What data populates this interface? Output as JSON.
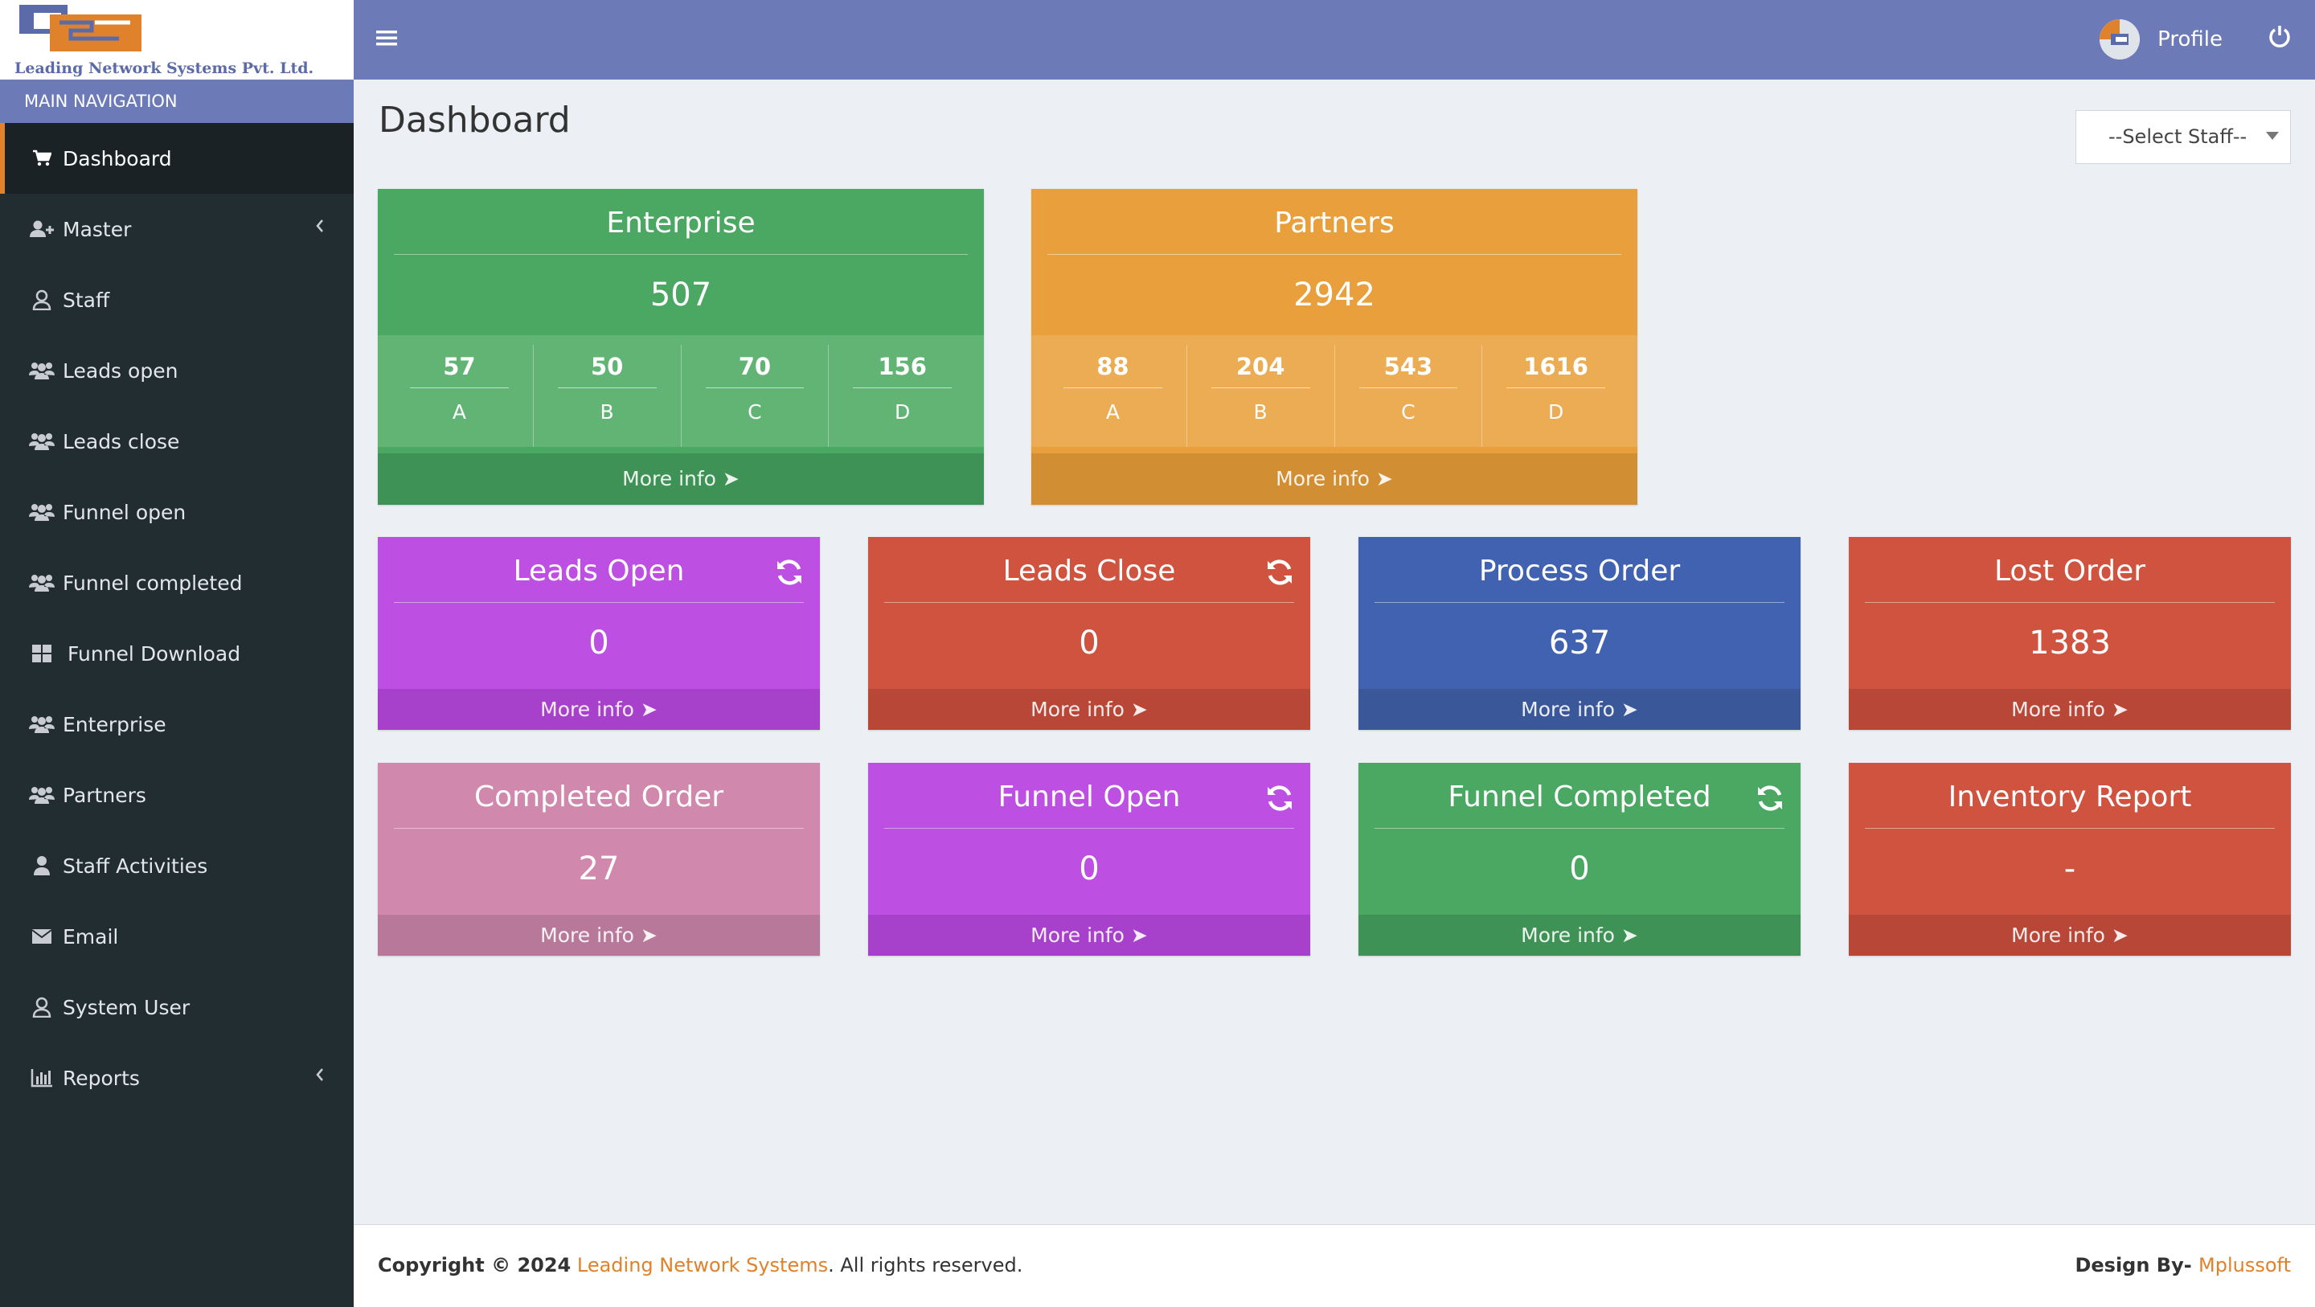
{
  "brand": {
    "logo_text": "Leading Network Systems Pvt. Ltd."
  },
  "sidebar": {
    "header": "MAIN NAVIGATION",
    "items": [
      {
        "label": "Dashboard",
        "icon": "cart-icon"
      },
      {
        "label": "Master",
        "icon": "user-plus-icon"
      },
      {
        "label": "Staff",
        "icon": "user-outline-icon"
      },
      {
        "label": "Leads open",
        "icon": "users-icon"
      },
      {
        "label": "Leads close",
        "icon": "users-icon"
      },
      {
        "label": "Funnel open",
        "icon": "users-icon"
      },
      {
        "label": "Funnel completed",
        "icon": "users-icon"
      },
      {
        "label": "Funnel Download",
        "icon": "grid-icon"
      },
      {
        "label": "Enterprise",
        "icon": "users-icon"
      },
      {
        "label": "Partners",
        "icon": "users-icon"
      },
      {
        "label": "Staff Activities",
        "icon": "user-icon"
      },
      {
        "label": "Email",
        "icon": "envelope-icon"
      },
      {
        "label": "System User",
        "icon": "user-outline-icon"
      },
      {
        "label": "Reports",
        "icon": "bar-chart-icon"
      }
    ]
  },
  "header": {
    "profile_label": "Profile"
  },
  "page": {
    "title": "Dashboard",
    "staff_select": "--Select Staff--"
  },
  "more_info": "More info",
  "enterprise": {
    "title": "Enterprise",
    "value": "507",
    "subs": [
      {
        "v": "57",
        "l": "A"
      },
      {
        "v": "50",
        "l": "B"
      },
      {
        "v": "70",
        "l": "C"
      },
      {
        "v": "156",
        "l": "D"
      }
    ]
  },
  "partners": {
    "title": "Partners",
    "value": "2942",
    "subs": [
      {
        "v": "88",
        "l": "A"
      },
      {
        "v": "204",
        "l": "B"
      },
      {
        "v": "543",
        "l": "C"
      },
      {
        "v": "1616",
        "l": "D"
      }
    ]
  },
  "cards": [
    {
      "title": "Leads Open",
      "value": "0"
    },
    {
      "title": "Leads Close",
      "value": "0"
    },
    {
      "title": "Process Order",
      "value": "637"
    },
    {
      "title": "Lost Order",
      "value": "1383"
    },
    {
      "title": "Completed Order",
      "value": "27"
    },
    {
      "title": "Funnel Open",
      "value": "0"
    },
    {
      "title": "Funnel Completed",
      "value": "0"
    },
    {
      "title": "Inventory Report",
      "value": "-"
    }
  ],
  "colors": {
    "green": "#4aa862",
    "orange": "#e9a03c",
    "purple": "#bd50e3",
    "red": "#d05340",
    "blue": "#4062b0",
    "pink": "#d188ad",
    "accent": "#e0812b",
    "header": "#6c7ab8"
  },
  "footer": {
    "copyright_prefix": "Copyright © 2024",
    "company": "Leading Network Systems",
    "rights": ". All rights reserved.",
    "design_by": "Design By-",
    "designer": "Mplussoft"
  }
}
